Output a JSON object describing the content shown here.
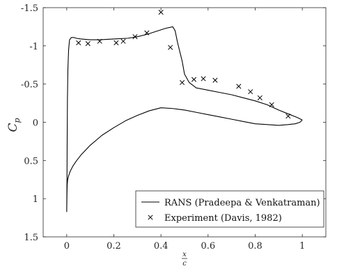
{
  "chart_data": {
    "type": "line",
    "title": "",
    "xlabel": {
      "numerator": "x",
      "denominator": "c"
    },
    "ylabel": {
      "base": "C",
      "subscript": "p"
    },
    "xlim": [
      -0.1,
      1.1
    ],
    "ylim": [
      -1.5,
      1.5
    ],
    "y_reversed": true,
    "grid": false,
    "legend_position": "bottom-right",
    "xticks": [
      0,
      0.2,
      0.4,
      0.6,
      0.8,
      1
    ],
    "xtick_labels": [
      "0",
      "0.2",
      "0.4",
      "0.6",
      "0.8",
      "1"
    ],
    "yticks": [
      -1.5,
      -1,
      -0.5,
      0,
      0.5,
      1,
      1.5
    ],
    "ytick_labels": [
      "-1.5",
      "-1",
      "-0.5",
      "0",
      "0.5",
      "1",
      "1.5"
    ],
    "series": [
      {
        "name": "RANS (Pradeepa & Venkatraman)",
        "kind": "line",
        "color": "#000000",
        "x": [
          1.0,
          0.98,
          0.94,
          0.9,
          0.85,
          0.8,
          0.75,
          0.7,
          0.65,
          0.6,
          0.55,
          0.52,
          0.5,
          0.49,
          0.47,
          0.46,
          0.45,
          0.42,
          0.38,
          0.34,
          0.3,
          0.26,
          0.2,
          0.14,
          0.1,
          0.06,
          0.04,
          0.03,
          0.02,
          0.012,
          0.008,
          0.005,
          0.003,
          0.002,
          0.001,
          0.0,
          0.001,
          0.002,
          0.004,
          0.008,
          0.015,
          0.025,
          0.04,
          0.06,
          0.1,
          0.15,
          0.2,
          0.25,
          0.3,
          0.35,
          0.4,
          0.45,
          0.5,
          0.55,
          0.6,
          0.65,
          0.7,
          0.75,
          0.8,
          0.85,
          0.9,
          0.94,
          0.97,
          0.99,
          1.0
        ],
        "y": [
          -0.03,
          -0.06,
          -0.11,
          -0.16,
          -0.23,
          -0.28,
          -0.32,
          -0.36,
          -0.39,
          -0.42,
          -0.45,
          -0.52,
          -0.63,
          -0.8,
          -1.05,
          -1.2,
          -1.25,
          -1.23,
          -1.19,
          -1.15,
          -1.12,
          -1.1,
          -1.09,
          -1.08,
          -1.08,
          -1.09,
          -1.1,
          -1.11,
          -1.11,
          -1.08,
          -0.95,
          -0.7,
          -0.3,
          0.2,
          0.8,
          1.17,
          0.95,
          0.82,
          0.75,
          0.7,
          0.64,
          0.58,
          0.51,
          0.43,
          0.3,
          0.17,
          0.07,
          -0.02,
          -0.09,
          -0.15,
          -0.19,
          -0.18,
          -0.16,
          -0.13,
          -0.1,
          -0.07,
          -0.04,
          -0.01,
          0.02,
          0.03,
          0.04,
          0.03,
          0.02,
          0.0,
          -0.03
        ]
      },
      {
        "name": "Experiment (Davis, 1982)",
        "kind": "scatter",
        "marker": "x",
        "color": "#000000",
        "x": [
          0.05,
          0.09,
          0.14,
          0.21,
          0.24,
          0.29,
          0.34,
          0.4,
          0.44,
          0.49,
          0.54,
          0.58,
          0.63,
          0.73,
          0.78,
          0.82,
          0.87,
          0.94
        ],
        "y": [
          -1.04,
          -1.03,
          -1.06,
          -1.04,
          -1.06,
          -1.12,
          -1.17,
          -1.44,
          -0.98,
          -0.52,
          -0.56,
          -0.57,
          -0.55,
          -0.47,
          -0.4,
          -0.32,
          -0.23,
          -0.08
        ]
      }
    ]
  }
}
